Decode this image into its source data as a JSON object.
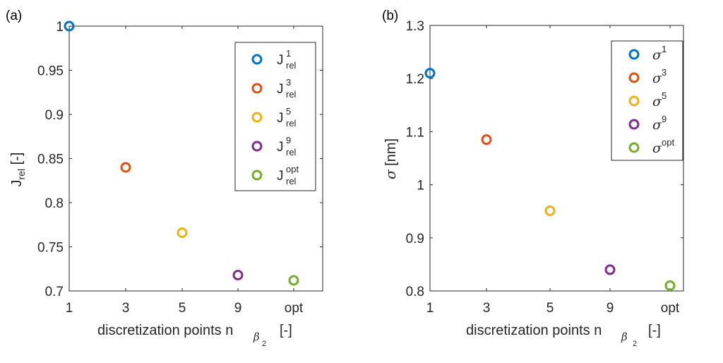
{
  "chart_data": [
    {
      "type": "scatter",
      "panel": "(a)",
      "categories": [
        "1",
        "3",
        "5",
        "9",
        "opt"
      ],
      "values": [
        1.0,
        0.84,
        0.766,
        0.718,
        0.712
      ],
      "colors": [
        "#0072BD",
        "#D95319",
        "#EDB120",
        "#7E2F8E",
        "#77AC30"
      ],
      "ylim": [
        0.7,
        1.0
      ],
      "yticks": [
        "0.7",
        "0.75",
        "0.8",
        "0.85",
        "0.9",
        "0.95",
        "1"
      ],
      "xlabel": {
        "main": "discretization points n",
        "sub1": "β",
        "sub2": "2",
        "tail": "[-]"
      },
      "ylabel": {
        "main": "J",
        "sub": "rel",
        "tail": " [-]"
      },
      "legend": {
        "placement": "top-right",
        "entries": [
          {
            "base": "J",
            "sup": "1",
            "sub": "rel"
          },
          {
            "base": "J",
            "sup": "3",
            "sub": "rel"
          },
          {
            "base": "J",
            "sup": "5",
            "sub": "rel"
          },
          {
            "base": "J",
            "sup": "9",
            "sub": "rel"
          },
          {
            "base": "J",
            "sup": "opt",
            "sub": "rel"
          }
        ]
      },
      "grid": false
    },
    {
      "type": "scatter",
      "panel": "(b)",
      "categories": [
        "1",
        "3",
        "5",
        "9",
        "opt"
      ],
      "values": [
        1.21,
        1.085,
        0.951,
        0.84,
        0.81
      ],
      "colors": [
        "#0072BD",
        "#D95319",
        "#EDB120",
        "#7E2F8E",
        "#77AC30"
      ],
      "ylim": [
        0.8,
        1.3
      ],
      "yticks": [
        "0.8",
        "0.9",
        "1",
        "1.1",
        "1.2",
        "1.3"
      ],
      "xlabel": {
        "main": "discretization points n",
        "sub1": "β",
        "sub2": "2",
        "tail": "[-]"
      },
      "ylabel": {
        "greek": "σ",
        "tail": " [nm]"
      },
      "legend": {
        "placement": "top-right",
        "entries": [
          {
            "base": "σ",
            "sup": "1"
          },
          {
            "base": "σ",
            "sup": "3"
          },
          {
            "base": "σ",
            "sup": "5"
          },
          {
            "base": "σ",
            "sup": "9"
          },
          {
            "base": "σ",
            "sup": "opt"
          }
        ]
      },
      "grid": false
    }
  ]
}
